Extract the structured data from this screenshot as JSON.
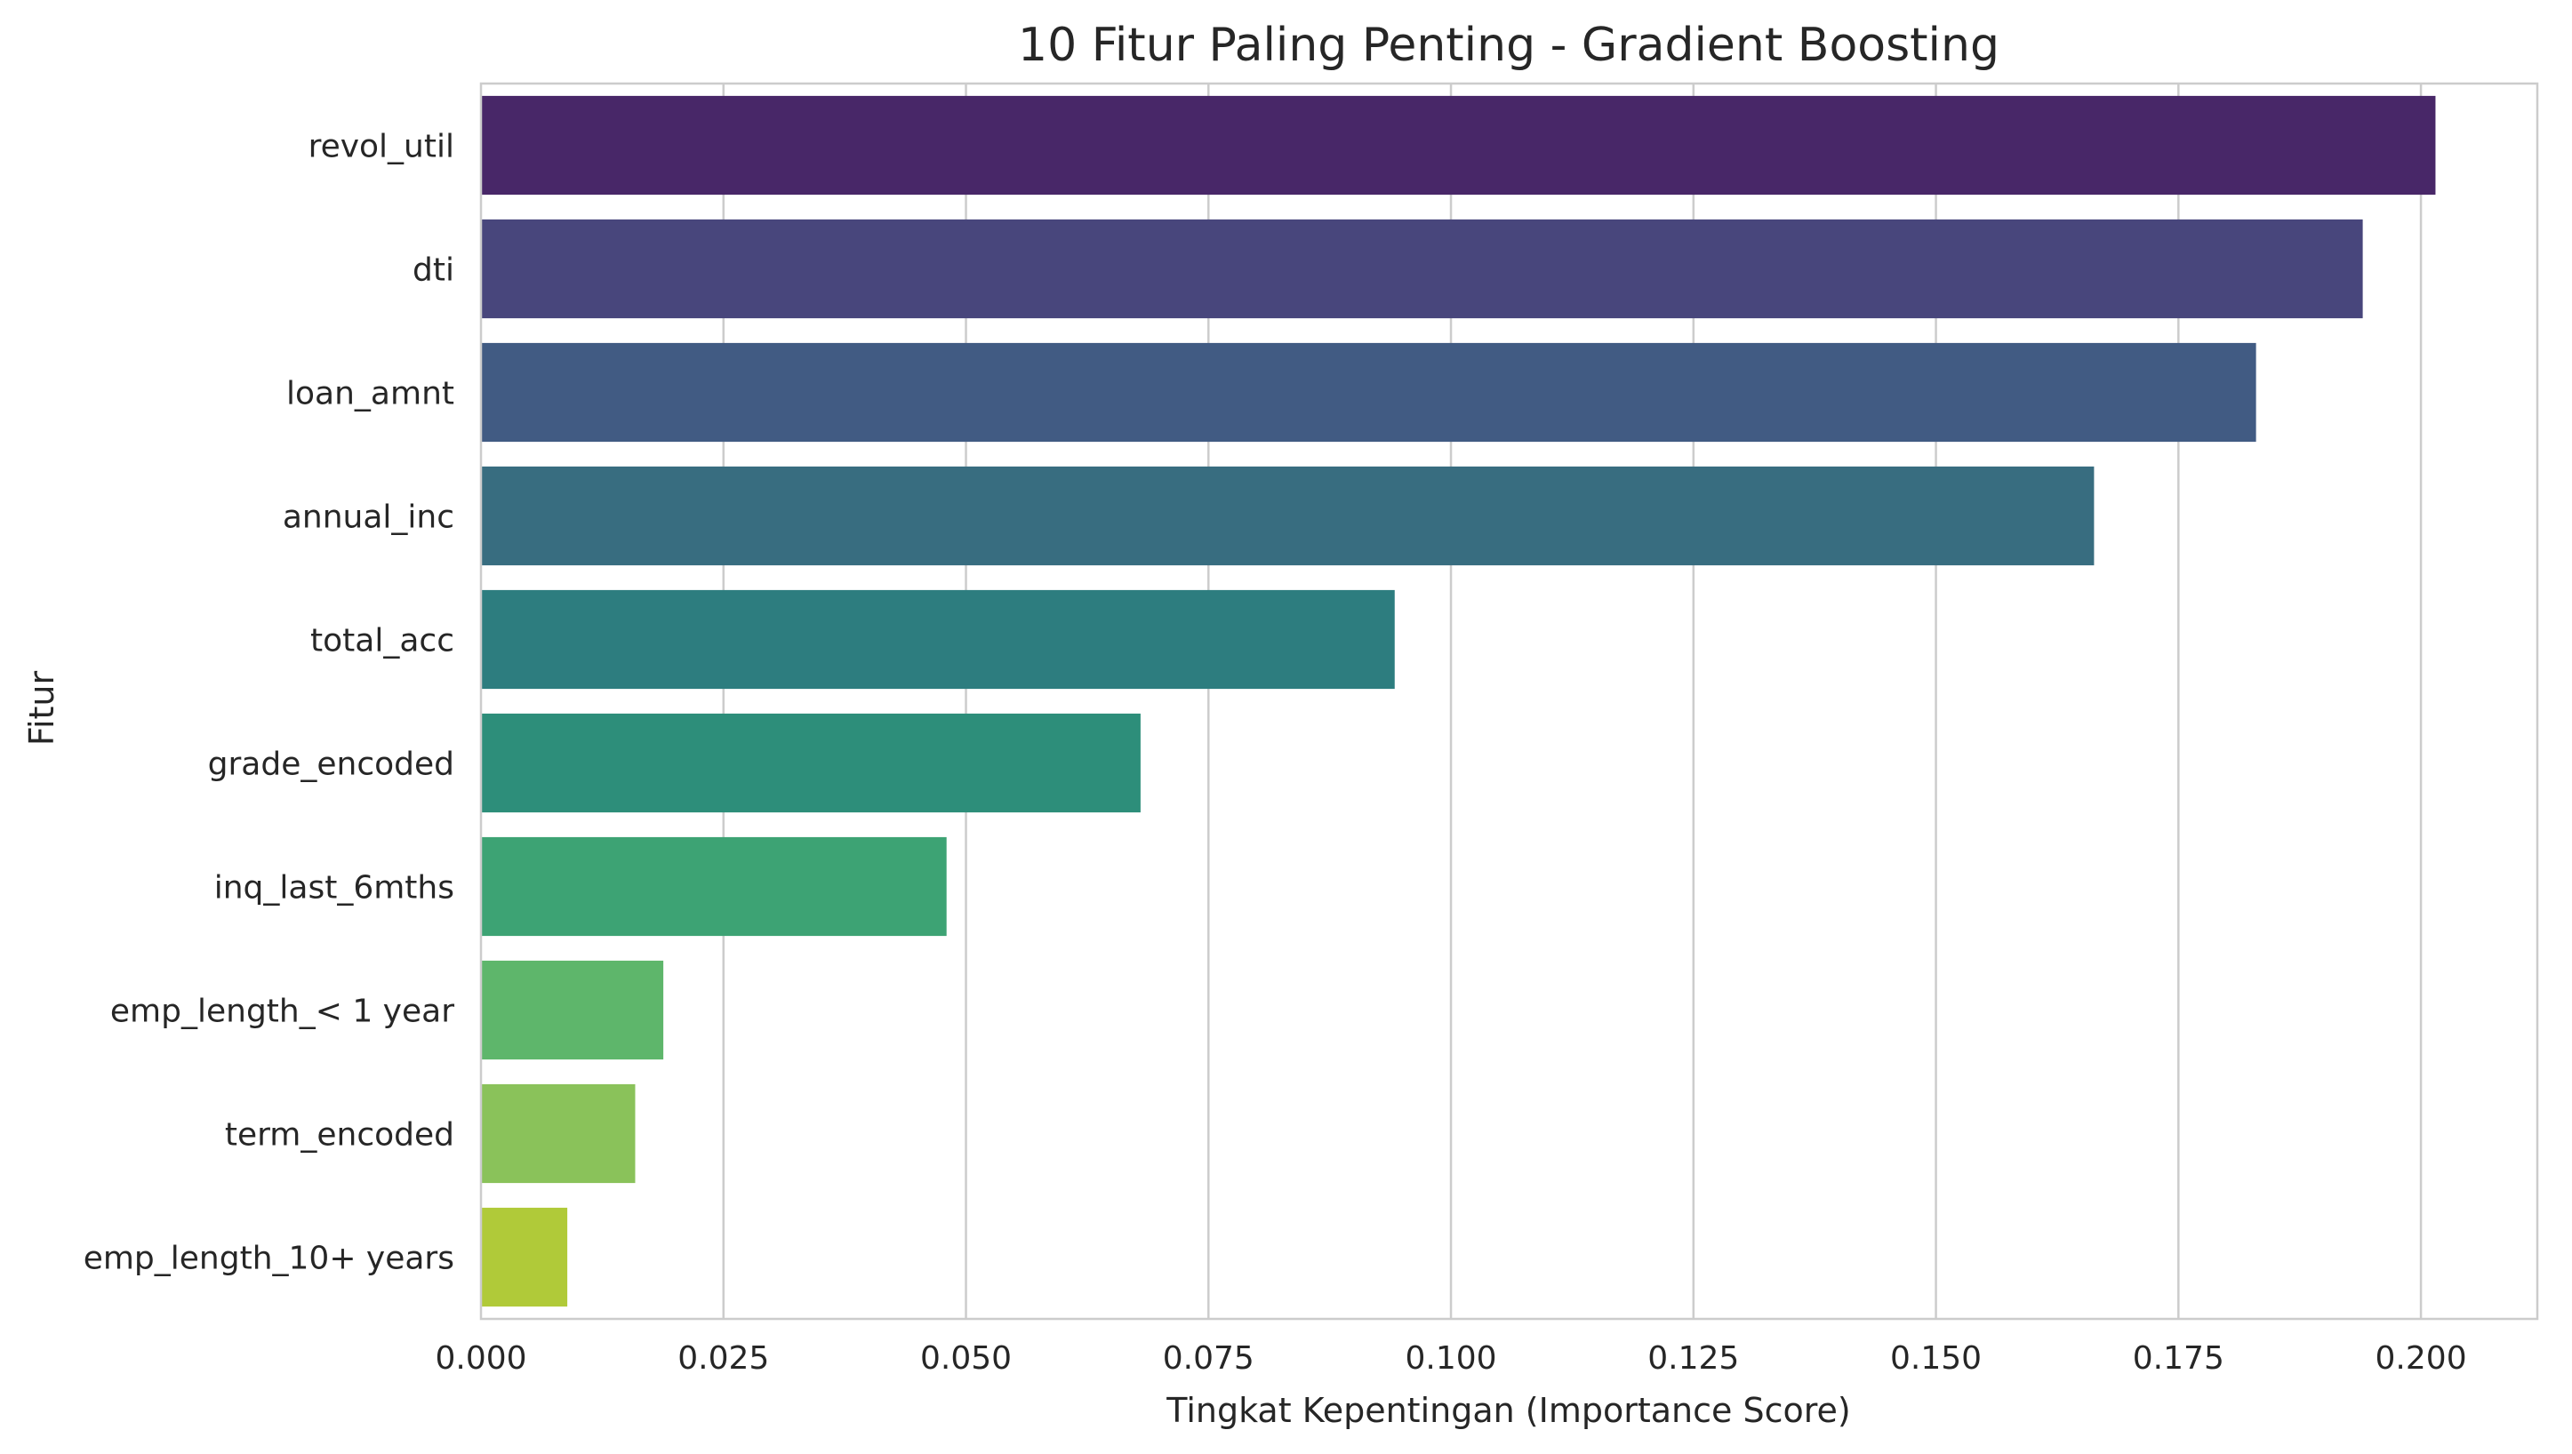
{
  "chart_data": {
    "type": "bar",
    "orientation": "horizontal",
    "title": "10 Fitur Paling Penting - Gradient Boosting",
    "xlabel": "Tingkat Kepentingan (Importance Score)",
    "ylabel": "Fitur",
    "xlim": [
      0,
      0.212
    ],
    "xticks": [
      "0.000",
      "0.025",
      "0.050",
      "0.075",
      "0.100",
      "0.125",
      "0.150",
      "0.175",
      "0.200"
    ],
    "xtick_values": [
      0,
      0.025,
      0.05,
      0.075,
      0.1,
      0.125,
      0.15,
      0.175,
      0.2
    ],
    "grid": "vertical",
    "categories": [
      "revol_util",
      "dti",
      "loan_amnt",
      "annual_inc",
      "total_acc",
      "grade_encoded",
      "inq_last_6mths",
      "emp_length_< 1 year",
      "term_encoded",
      "emp_length_10+ years"
    ],
    "values": [
      0.2015,
      0.194,
      0.183,
      0.1663,
      0.0942,
      0.068,
      0.048,
      0.0188,
      0.0159,
      0.0089
    ],
    "colors": [
      "#482768",
      "#48467c",
      "#415b83",
      "#386d80",
      "#2d7d7f",
      "#2d8e7a",
      "#3da374",
      "#5eb66b",
      "#8ac25a",
      "#b0ca39"
    ]
  },
  "style": {
    "grid_color": "#cccccc",
    "spine_color": "#cccccc",
    "text_color": "#262626",
    "background": "#ffffff"
  }
}
